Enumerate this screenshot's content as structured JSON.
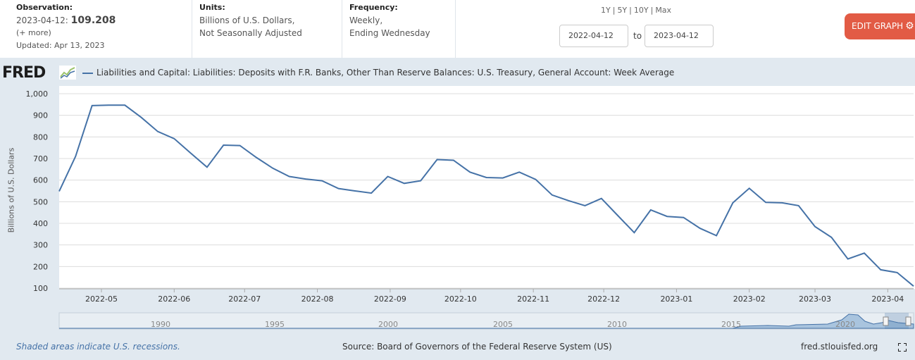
{
  "header": {
    "observation_label": "Observation:",
    "observation_date": "2023-04-12:",
    "observation_value": "109.208",
    "more": "(+ more)",
    "updated": "Updated: Apr 13, 2023",
    "units_label": "Units:",
    "units_line1": "Billions of U.S. Dollars,",
    "units_line2": "Not Seasonally Adjusted",
    "frequency_label": "Frequency:",
    "frequency_line1": "Weekly,",
    "frequency_line2": "Ending Wednesday",
    "range_links": [
      "1Y",
      "5Y",
      "10Y",
      "Max"
    ],
    "start_date": "2022-04-12",
    "end_date": "2023-04-12",
    "to_label": "to",
    "edit_button": "EDIT GRAPH"
  },
  "logo_text": "FRED",
  "footer": {
    "recession_note": "Shaded areas indicate U.S. recessions.",
    "source": "Source: Board of Governors of the Federal Reserve System (US)",
    "site": "fred.stlouisfed.org"
  },
  "colors": {
    "line": "#4572a7",
    "edit_button": "#e25b45",
    "background": "#e1e9f0"
  },
  "navigator_years": [
    "1990",
    "1995",
    "2000",
    "2005",
    "2010",
    "2015",
    "2020"
  ],
  "chart_data": {
    "type": "line",
    "title": "",
    "series": [
      {
        "name": "Liabilities and Capital: Liabilities: Deposits with F.R. Banks, Other Than Reserve Balances: U.S. Treasury, General Account: Week Average",
        "x": [
          "2022-04-13",
          "2022-04-20",
          "2022-04-27",
          "2022-05-04",
          "2022-05-11",
          "2022-05-18",
          "2022-05-25",
          "2022-06-01",
          "2022-06-08",
          "2022-06-15",
          "2022-06-22",
          "2022-06-29",
          "2022-07-06",
          "2022-07-13",
          "2022-07-20",
          "2022-07-27",
          "2022-08-03",
          "2022-08-10",
          "2022-08-17",
          "2022-08-24",
          "2022-08-31",
          "2022-09-07",
          "2022-09-14",
          "2022-09-21",
          "2022-09-28",
          "2022-10-05",
          "2022-10-12",
          "2022-10-19",
          "2022-10-26",
          "2022-11-02",
          "2022-11-09",
          "2022-11-16",
          "2022-11-23",
          "2022-11-30",
          "2022-12-07",
          "2022-12-14",
          "2022-12-21",
          "2022-12-28",
          "2023-01-04",
          "2023-01-11",
          "2023-01-18",
          "2023-01-25",
          "2023-02-01",
          "2023-02-08",
          "2023-02-15",
          "2023-02-22",
          "2023-03-01",
          "2023-03-08",
          "2023-03-15",
          "2023-03-22",
          "2023-03-29",
          "2023-04-05",
          "2023-04-12"
        ],
        "y": [
          548,
          710,
          945,
          947,
          947,
          890,
          825,
          792,
          725,
          660,
          762,
          760,
          705,
          655,
          617,
          605,
          597,
          561,
          550,
          540,
          617,
          585,
          597,
          695,
          692,
          637,
          612,
          610,
          637,
          603,
          531,
          505,
          482,
          515,
          436,
          357,
          462,
          432,
          427,
          377,
          343,
          495,
          562,
          497,
          495,
          482,
          385,
          335,
          235,
          262,
          185,
          172,
          109.208
        ]
      }
    ],
    "xlabel": "",
    "ylabel": "Billions of U.S. Dollars",
    "ylim": [
      100,
      1000
    ],
    "yticks": [
      "100",
      "200",
      "300",
      "400",
      "500",
      "600",
      "700",
      "800",
      "900",
      "1,000"
    ],
    "xticks": [
      "2022-05",
      "2022-06",
      "2022-07",
      "2022-08",
      "2022-09",
      "2022-10",
      "2022-11",
      "2022-12",
      "2023-01",
      "2023-02",
      "2023-03",
      "2023-04"
    ],
    "grid": true,
    "legend_position": "top-left"
  }
}
